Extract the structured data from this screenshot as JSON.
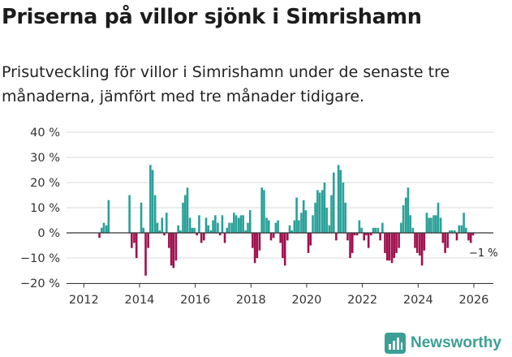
{
  "header": {
    "title": "Priserna på villor sjönk i Simrishamn",
    "subtitle": "Prisutveckling för villor i Simrishamn under de senaste tre månaderna, jämfört med tre månader tidigare."
  },
  "brand": {
    "name": "Newsworthy"
  },
  "colors": {
    "positive": "#2aa198",
    "negative": "#a0104e",
    "axis": "#333333",
    "grid": "#d9d9d9",
    "brand": "#3a9f94"
  },
  "chart_data": {
    "type": "bar",
    "title": "Priserna på villor sjönk i Simrishamn",
    "xlabel": "",
    "ylabel": "",
    "x_unit": "decimal year",
    "y_unit": "%",
    "ylim": [
      -20,
      40
    ],
    "xlim": [
      2011.7,
      2026.7
    ],
    "y_ticks": [
      {
        "value": 40,
        "label": "40 %"
      },
      {
        "value": 30,
        "label": "30 %"
      },
      {
        "value": 20,
        "label": "20 %"
      },
      {
        "value": 10,
        "label": "10 %"
      },
      {
        "value": 0,
        "label": "0 %"
      },
      {
        "value": -10,
        "label": "−10 %"
      },
      {
        "value": -20,
        "label": "−20 %"
      }
    ],
    "x_ticks": [
      {
        "value": 2012,
        "label": "2012"
      },
      {
        "value": 2014,
        "label": "2014"
      },
      {
        "value": 2016,
        "label": "2016"
      },
      {
        "value": 2018,
        "label": "2018"
      },
      {
        "value": 2020,
        "label": "2020"
      },
      {
        "value": 2022,
        "label": "2022"
      },
      {
        "value": 2024,
        "label": "2024"
      },
      {
        "value": 2026,
        "label": "2026"
      }
    ],
    "grid": true,
    "annotation": {
      "label": "−1 %",
      "x": 2026.0,
      "y": -1
    },
    "x": [
      2012.56,
      2012.64,
      2012.72,
      2012.81,
      2012.89,
      2013.64,
      2013.72,
      2013.81,
      2013.89,
      2014.06,
      2014.14,
      2014.22,
      2014.31,
      2014.39,
      2014.47,
      2014.56,
      2014.64,
      2014.72,
      2014.81,
      2014.89,
      2014.97,
      2015.06,
      2015.14,
      2015.22,
      2015.31,
      2015.39,
      2015.47,
      2015.56,
      2015.64,
      2015.72,
      2015.81,
      2015.89,
      2015.97,
      2016.06,
      2016.14,
      2016.22,
      2016.31,
      2016.39,
      2016.47,
      2016.56,
      2016.64,
      2016.72,
      2016.81,
      2016.89,
      2016.97,
      2017.06,
      2017.14,
      2017.22,
      2017.31,
      2017.39,
      2017.47,
      2017.56,
      2017.64,
      2017.72,
      2017.81,
      2017.89,
      2017.97,
      2018.06,
      2018.14,
      2018.22,
      2018.31,
      2018.39,
      2018.47,
      2018.56,
      2018.64,
      2018.72,
      2018.81,
      2018.89,
      2018.97,
      2019.06,
      2019.14,
      2019.22,
      2019.31,
      2019.39,
      2019.47,
      2019.56,
      2019.64,
      2019.72,
      2019.81,
      2019.89,
      2019.97,
      2020.06,
      2020.14,
      2020.22,
      2020.31,
      2020.39,
      2020.47,
      2020.56,
      2020.64,
      2020.72,
      2020.81,
      2020.89,
      2020.97,
      2021.06,
      2021.14,
      2021.22,
      2021.31,
      2021.39,
      2021.47,
      2021.56,
      2021.64,
      2021.72,
      2021.81,
      2021.89,
      2021.97,
      2022.06,
      2022.14,
      2022.22,
      2022.31,
      2022.39,
      2022.47,
      2022.56,
      2022.64,
      2022.72,
      2022.81,
      2022.89,
      2022.97,
      2023.06,
      2023.14,
      2023.22,
      2023.31,
      2023.39,
      2023.47,
      2023.56,
      2023.64,
      2023.72,
      2023.81,
      2023.89,
      2023.97,
      2024.06,
      2024.14,
      2024.22,
      2024.31,
      2024.39,
      2024.47,
      2024.56,
      2024.64,
      2024.72,
      2024.81,
      2024.89,
      2024.97,
      2025.06,
      2025.14,
      2025.22,
      2025.31,
      2025.39,
      2025.47,
      2025.56,
      2025.64,
      2025.72,
      2025.81,
      2025.89,
      2025.97
    ],
    "values": [
      -2,
      2,
      4,
      3,
      13,
      15,
      -6,
      -4,
      -10,
      12,
      2,
      -17,
      -6,
      27,
      25,
      15,
      4,
      1,
      6,
      -1,
      8,
      -6,
      -13,
      -14,
      -11,
      3,
      1,
      12,
      15,
      18,
      6,
      2,
      2,
      -1,
      7,
      -4,
      -3,
      6,
      3,
      1,
      5,
      7,
      4,
      -1,
      7,
      -4,
      2,
      4,
      4,
      8,
      7,
      6,
      7,
      7,
      1,
      4,
      9,
      -6,
      -12,
      -10,
      -7,
      18,
      17,
      6,
      5,
      -3,
      -2,
      4,
      5,
      -4,
      -10,
      -13,
      -3,
      3,
      1,
      5,
      14,
      5,
      8,
      13,
      9,
      -8,
      -5,
      7,
      12,
      17,
      16,
      17,
      20,
      10,
      3,
      15,
      24,
      -3,
      27,
      25,
      20,
      12,
      -3,
      -10,
      -8,
      -1,
      -1,
      5,
      2,
      -3,
      -1,
      -6,
      -1,
      2,
      2,
      2,
      -3,
      4,
      -8,
      -11,
      -11,
      -12,
      -10,
      -8,
      -6,
      4,
      11,
      14,
      18,
      7,
      2,
      -6,
      -8,
      -9,
      -13,
      -7,
      8,
      6,
      6,
      7,
      7,
      12,
      6,
      -4,
      -8,
      -6,
      1,
      1,
      1,
      -3,
      3,
      3,
      8,
      2,
      -3,
      -4,
      -1
    ]
  }
}
